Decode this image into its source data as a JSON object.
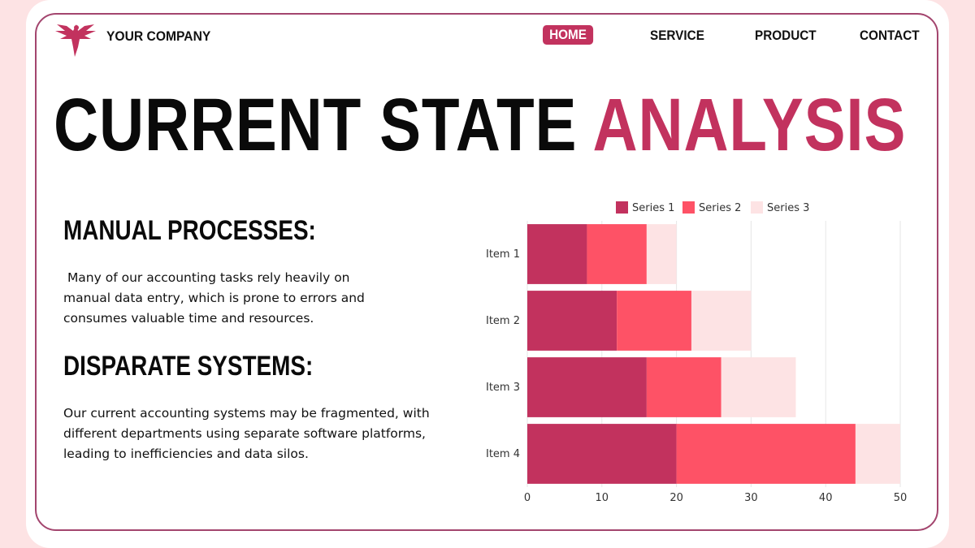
{
  "header": {
    "company": "YOUR COMPANY",
    "nav": [
      "HOME",
      "SERVICE",
      "PRODUCT",
      "CONTACT"
    ]
  },
  "title": {
    "part1": "CURRENT STATE",
    "part2": "ANALYSIS"
  },
  "sections": [
    {
      "heading": "MANUAL PROCESSES:",
      "body": " Many of our accounting tasks rely heavily on\nmanual data entry, which is prone to errors and\nconsumes valuable time and resources."
    },
    {
      "heading": "DISPARATE SYSTEMS:",
      "body": "Our current accounting systems may be fragmented, with\ndifferent departments using separate software platforms,\nleading to inefficiencies and data silos."
    }
  ],
  "colors": {
    "accent": "#c2325e",
    "series": [
      "#c2325e",
      "#fe5266",
      "#fde3e4"
    ]
  },
  "chart_data": {
    "type": "bar",
    "orientation": "horizontal",
    "stacked": true,
    "categories": [
      "Item 1",
      "Item 2",
      "Item 3",
      "Item 4"
    ],
    "series": [
      {
        "name": "Series 1",
        "values": [
          8,
          12,
          16,
          20
        ]
      },
      {
        "name": "Series 2",
        "values": [
          8,
          10,
          10,
          24
        ]
      },
      {
        "name": "Series 3",
        "values": [
          4,
          8,
          10,
          6
        ]
      }
    ],
    "xlim": [
      0,
      50
    ],
    "xticks": [
      0,
      10,
      20,
      30,
      40,
      50
    ],
    "grid": true,
    "legend": "top"
  }
}
